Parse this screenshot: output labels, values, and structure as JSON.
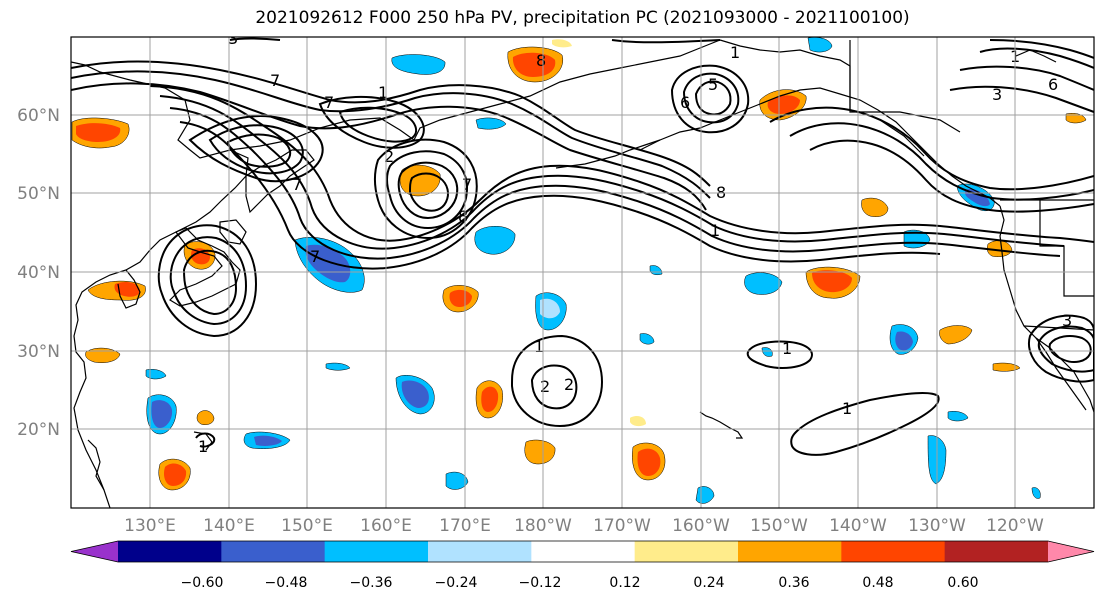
{
  "title": "2021092612 F000 250 hPa PV, precipitation PC (2021093000 - 2021100100)",
  "map": {
    "lat_labels": [
      "60°N",
      "50°N",
      "40°N",
      "30°N",
      "20°N"
    ],
    "lon_labels": [
      "130°E",
      "140°E",
      "150°E",
      "160°E",
      "170°E",
      "180°W",
      "170°W",
      "160°W",
      "150°W",
      "140°W",
      "130°W",
      "120°W"
    ],
    "grid_color": "#a0a0a0"
  },
  "colorbar": {
    "ticks": [
      "−0.60",
      "−0.48",
      "−0.36",
      "−0.24",
      "−0.12",
      "0.12",
      "0.24",
      "0.36",
      "0.48",
      "0.60"
    ],
    "colors": [
      "#9932cc",
      "#00008b",
      "#3a5fcd",
      "#00bfff",
      "#b0e2ff",
      "#ffffff",
      "#ffec8b",
      "#ffa500",
      "#ff4500",
      "#b22222",
      "#ff88aa"
    ]
  },
  "contour_labels": [
    "3",
    "7",
    "1",
    "5",
    "8",
    "6",
    "1",
    "7",
    "2",
    "8",
    "7",
    "6",
    "3",
    "1",
    "8",
    "7",
    "1",
    "2",
    "2",
    "1",
    "1",
    "3",
    "7",
    "1",
    "1"
  ],
  "palette": {
    "purple": "#9932cc",
    "navy": "#00008b",
    "royal": "#3a5fcd",
    "sky": "#00bfff",
    "light_sky": "#b0e2ff",
    "yellow": "#ffec8b",
    "orange": "#ffa500",
    "red_orange": "#ff4500",
    "firebrick": "#b22222",
    "pink": "#ff88aa"
  }
}
